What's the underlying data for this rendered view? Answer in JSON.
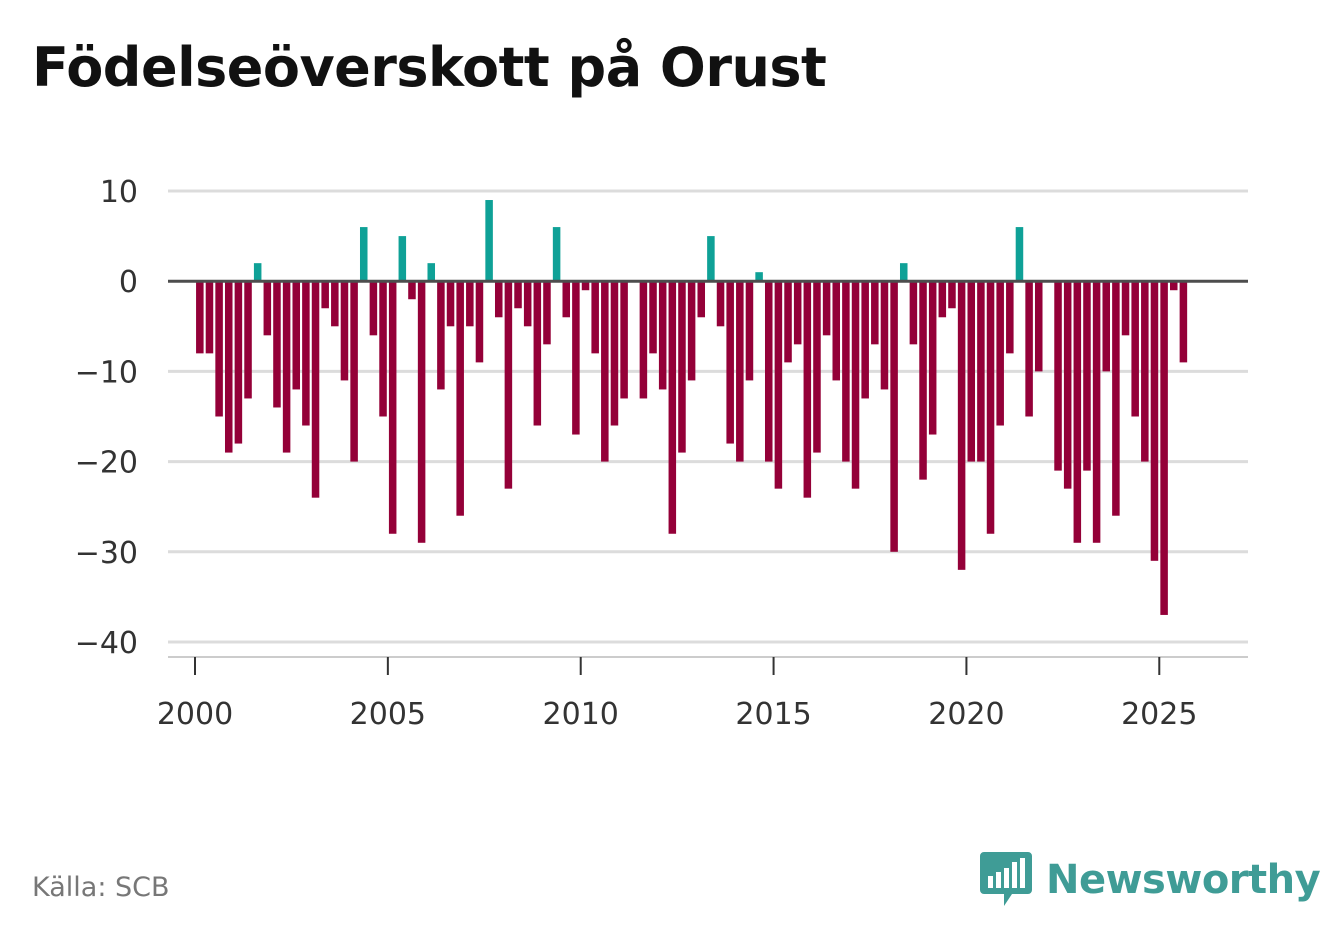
{
  "chart_data": {
    "type": "bar",
    "title": "Födelseöverskott på Orust",
    "xlabel": "",
    "ylabel": "",
    "ylim": [
      -40,
      10
    ],
    "xlim": [
      1999.3,
      2027.3
    ],
    "yticks": [
      10,
      0,
      -10,
      -20,
      -30,
      -40
    ],
    "ytick_labels": [
      "10",
      "0",
      "−10",
      "−20",
      "−30",
      "−40"
    ],
    "xticks": [
      2000,
      2005,
      2010,
      2015,
      2020,
      2025
    ],
    "xtick_labels": [
      "2000",
      "2005",
      "2010",
      "2015",
      "2020",
      "2025"
    ],
    "positive_color": "#0fa197",
    "negative_color": "#940038",
    "grid_color": "#dcdcdc",
    "zero_line_color": "#4d4d4d",
    "x": [
      2000.125,
      2000.375,
      2000.625,
      2000.875,
      2001.125,
      2001.375,
      2001.625,
      2001.875,
      2002.125,
      2002.375,
      2002.625,
      2002.875,
      2003.125,
      2003.375,
      2003.625,
      2003.875,
      2004.125,
      2004.375,
      2004.625,
      2004.875,
      2005.125,
      2005.375,
      2005.625,
      2005.875,
      2006.125,
      2006.375,
      2006.625,
      2006.875,
      2007.125,
      2007.375,
      2007.625,
      2007.875,
      2008.125,
      2008.375,
      2008.625,
      2008.875,
      2009.125,
      2009.375,
      2009.625,
      2009.875,
      2010.125,
      2010.375,
      2010.625,
      2010.875,
      2011.125,
      2011.375,
      2011.625,
      2011.875,
      2012.125,
      2012.375,
      2012.625,
      2012.875,
      2013.125,
      2013.375,
      2013.625,
      2013.875,
      2014.125,
      2014.375,
      2014.625,
      2014.875,
      2015.125,
      2015.375,
      2015.625,
      2015.875,
      2016.125,
      2016.375,
      2016.625,
      2016.875,
      2017.125,
      2017.375,
      2017.625,
      2017.875,
      2018.125,
      2018.375,
      2018.625,
      2018.875,
      2019.125,
      2019.375,
      2019.625,
      2019.875,
      2020.125,
      2020.375,
      2020.625,
      2020.875,
      2021.125,
      2021.375,
      2021.625,
      2021.875,
      2022.125,
      2022.375,
      2022.625,
      2022.875,
      2023.125,
      2023.375,
      2023.625,
      2023.875,
      2024.125,
      2024.375,
      2024.625,
      2024.875,
      2025.125,
      2025.375,
      2025.625
    ],
    "values": [
      -8,
      -8,
      -15,
      -19,
      -18,
      -13,
      2,
      -6,
      -14,
      -19,
      -12,
      -16,
      -24,
      -3,
      -5,
      -11,
      -20,
      6,
      -6,
      -15,
      -28,
      5,
      -2,
      -29,
      2,
      -12,
      -5,
      -26,
      -5,
      -9,
      9,
      -4,
      -23,
      -3,
      -5,
      -16,
      -7,
      6,
      -4,
      -17,
      -1,
      -8,
      -20,
      -16,
      -13,
      0,
      -13,
      -8,
      -12,
      -28,
      -19,
      -11,
      -4,
      5,
      -5,
      -18,
      -20,
      -11,
      1,
      -20,
      -23,
      -9,
      -7,
      -24,
      -19,
      -6,
      -11,
      -20,
      -23,
      -13,
      -7,
      -12,
      -30,
      2,
      -7,
      -22,
      -17,
      -4,
      -3,
      -32,
      -20,
      -20,
      -28,
      -16,
      -8,
      6,
      -15,
      -10,
      0,
      -21,
      -23,
      -29,
      -21,
      -29,
      -10,
      -26,
      -6,
      -15,
      -20,
      -31,
      -37,
      -1,
      -9
    ]
  },
  "source_text": "Källa: SCB",
  "brand_text": "Newsworthy",
  "brand_color": "#3f9c96"
}
